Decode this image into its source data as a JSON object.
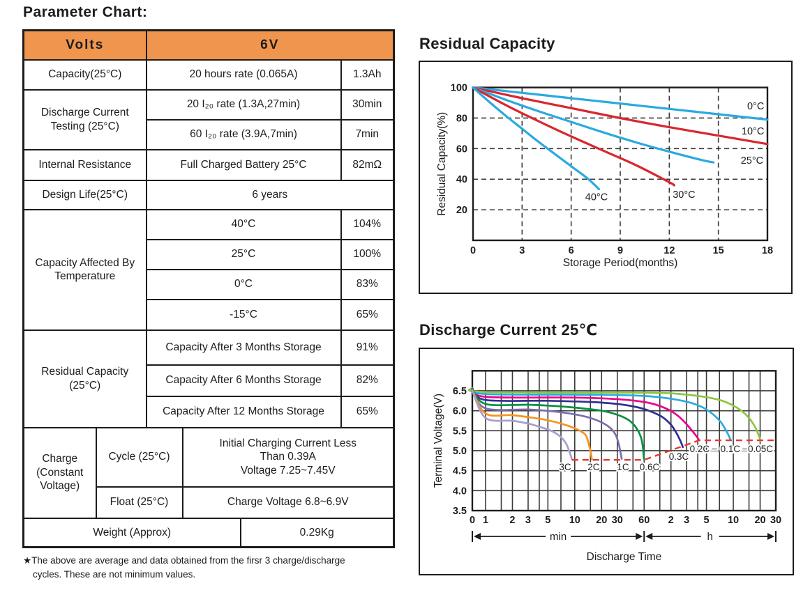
{
  "page": {
    "heading": "Parameter Chart:"
  },
  "colors": {
    "header_orange": "#F0954E",
    "blue": "#2BA9E0",
    "red": "#D9272E",
    "cutoff_red": "#E8382F",
    "grid": "#3a3a3a",
    "ink": "#1c1c1c"
  },
  "table": {
    "header": {
      "volts": "Volts",
      "voltage": "6V"
    },
    "capacity": {
      "label": "Capacity(25°C)",
      "desc": "20 hours rate (0.065A)",
      "value": "1.3Ah"
    },
    "discharge_test": {
      "label": "Discharge Current Testing (25°C)",
      "rows": [
        {
          "desc": "20 I₂₀ rate (1.3A,27min)",
          "value": "30min"
        },
        {
          "desc": "60 I₂₀ rate (3.9A,7min)",
          "value": "7min"
        }
      ]
    },
    "internal_resistance": {
      "label": "Internal Resistance",
      "desc": "Full Charged Battery 25°C",
      "value": "82mΩ"
    },
    "design_life": {
      "label": "Design Life(25°C)",
      "value": "6 years"
    },
    "capacity_temp": {
      "label": "Capacity Affected By Temperature",
      "rows": [
        {
          "desc": "40°C",
          "value": "104%"
        },
        {
          "desc": "25°C",
          "value": "100%"
        },
        {
          "desc": "0°C",
          "value": "83%"
        },
        {
          "desc": "-15°C",
          "value": "65%"
        }
      ]
    },
    "residual": {
      "label": "Residual Capacity (25°C)",
      "rows": [
        {
          "desc": "Capacity After 3 Months Storage",
          "value": "91%"
        },
        {
          "desc": "Capacity After 6 Months Storage",
          "value": "82%"
        },
        {
          "desc": "Capacity After 12 Months Storage",
          "value": "65%"
        }
      ]
    },
    "charge": {
      "label": "Charge (Constant Voltage)",
      "rows": [
        {
          "mode": "Cycle (25°C)",
          "value": "Initial Charging Current Less\nThan 0.39A\nVoltage 7.25~7.45V"
        },
        {
          "mode": "Float (25°C)",
          "value": "Charge Voltage 6.8~6.9V"
        }
      ]
    },
    "weight": {
      "label": "Weight (Approx)",
      "value": "0.29Kg"
    }
  },
  "footnote": "★The above are average and data obtained from the firsr 3 charge/discharge\ncycles. These are not minimum values.",
  "chart_data": [
    {
      "id": "residual-capacity",
      "type": "line",
      "title": "Residual Capacity",
      "xlabel": "Storage Period(months)",
      "ylabel": "Residual Capacity(%)",
      "xlim": [
        0,
        18
      ],
      "ylim": [
        0,
        100
      ],
      "xticks": [
        0,
        3,
        6,
        9,
        12,
        15,
        18
      ],
      "yticks": [
        20,
        40,
        60,
        80,
        100
      ],
      "grid": "dashed",
      "legend_position": "inline-labels",
      "series": [
        {
          "name": "0°C",
          "color": "#2BA9E0",
          "points": [
            [
              0,
              100
            ],
            [
              3,
              96.5
            ],
            [
              6,
              93
            ],
            [
              9,
              89.5
            ],
            [
              12,
              86
            ],
            [
              15,
              82.5
            ],
            [
              18,
              79
            ]
          ]
        },
        {
          "name": "10°C",
          "color": "#D9272E",
          "points": [
            [
              0,
              100
            ],
            [
              3,
              93
            ],
            [
              6,
              86.5
            ],
            [
              9,
              80
            ],
            [
              12,
              74
            ],
            [
              15,
              68.5
            ],
            [
              18,
              63
            ]
          ]
        },
        {
          "name": "25°C",
          "color": "#2BA9E0",
          "points": [
            [
              0,
              100
            ],
            [
              2,
              92
            ],
            [
              4,
              84.5
            ],
            [
              6,
              77.5
            ],
            [
              8,
              70.5
            ],
            [
              10,
              64
            ],
            [
              12,
              58
            ],
            [
              14,
              52.5
            ],
            [
              14.7,
              51
            ]
          ]
        },
        {
          "name": "30°C",
          "color": "#D9272E",
          "points": [
            [
              0,
              100
            ],
            [
              2,
              88.5
            ],
            [
              4,
              78
            ],
            [
              6,
              68
            ],
            [
              8,
              58.5
            ],
            [
              10,
              49
            ],
            [
              12,
              38
            ],
            [
              12.3,
              36
            ]
          ]
        },
        {
          "name": "40°C",
          "color": "#2BA9E0",
          "points": [
            [
              0,
              100
            ],
            [
              1,
              90.5
            ],
            [
              2,
              81.5
            ],
            [
              3,
              73
            ],
            [
              4,
              64.5
            ],
            [
              5,
              56.5
            ],
            [
              6,
              48.5
            ],
            [
              7,
              40.5
            ],
            [
              7.7,
              33.5
            ]
          ]
        }
      ],
      "labels": [
        {
          "text": "0°C",
          "x": 17.8,
          "y": 88,
          "anchor": "end"
        },
        {
          "text": "10°C",
          "x": 17.8,
          "y": 71.5,
          "anchor": "end"
        },
        {
          "text": "25°C",
          "x": 17.75,
          "y": 52.5,
          "anchor": "end"
        },
        {
          "text": "40°C",
          "x": 7.55,
          "y": 28.5,
          "anchor": "middle"
        },
        {
          "text": "30°C",
          "x": 12.9,
          "y": 30,
          "anchor": "middle"
        }
      ]
    },
    {
      "id": "discharge-current",
      "type": "line",
      "title": "Discharge Current 25℃",
      "xlabel": "Discharge Time",
      "ylabel": "Terminal Voltage(V)",
      "xscale": "log-minutes",
      "xlim": [
        0,
        1800
      ],
      "ylim": [
        3.5,
        7.0
      ],
      "xticks": [
        {
          "t": 0,
          "label": "0"
        },
        {
          "t": 1,
          "label": "1"
        },
        {
          "t": 2,
          "label": "2"
        },
        {
          "t": 3,
          "label": "3"
        },
        {
          "t": 5,
          "label": "5"
        },
        {
          "t": 10,
          "label": "10"
        },
        {
          "t": 20,
          "label": "20"
        },
        {
          "t": 30,
          "label": "30"
        },
        {
          "t": 60,
          "label": "60"
        },
        {
          "t": 120,
          "label": "2"
        },
        {
          "t": 180,
          "label": "3"
        },
        {
          "t": 300,
          "label": "5"
        },
        {
          "t": 600,
          "label": "10"
        },
        {
          "t": 1200,
          "label": "20"
        },
        {
          "t": 1800,
          "label": "30"
        }
      ],
      "xgrid": [
        1,
        1.5,
        2,
        3,
        4,
        5,
        7,
        10,
        15,
        20,
        30,
        45,
        60,
        90,
        120,
        180,
        240,
        300,
        420,
        600,
        900,
        1200
      ],
      "yticks": [
        3.5,
        4.0,
        4.5,
        5.0,
        5.5,
        6.0,
        6.5
      ],
      "grid": "solid",
      "unit_bands": [
        {
          "label": "min",
          "from": 0,
          "to": 60
        },
        {
          "label": "h",
          "from": 60,
          "to": 1800
        }
      ],
      "series": [
        {
          "name": "0.05C",
          "color": "#8CC63F",
          "points": [
            [
              0,
              6.57
            ],
            [
              1,
              6.47
            ],
            [
              60,
              6.45
            ],
            [
              150,
              6.42
            ],
            [
              300,
              6.34
            ],
            [
              450,
              6.25
            ],
            [
              600,
              6.13
            ],
            [
              750,
              5.99
            ],
            [
              900,
              5.82
            ],
            [
              1050,
              5.6
            ],
            [
              1150,
              5.4
            ],
            [
              1211,
              5.25
            ]
          ]
        },
        {
          "name": "0.1C",
          "color": "#29ABE2",
          "points": [
            [
              0,
              6.56
            ],
            [
              1,
              6.42
            ],
            [
              20,
              6.4
            ],
            [
              60,
              6.37
            ],
            [
              120,
              6.3
            ],
            [
              200,
              6.2
            ],
            [
              280,
              6.07
            ],
            [
              360,
              5.9
            ],
            [
              440,
              5.7
            ],
            [
              505,
              5.48
            ],
            [
              540,
              5.35
            ],
            [
              558,
              5.27
            ]
          ]
        },
        {
          "name": "0.2C",
          "color": "#EC008C",
          "points": [
            [
              0,
              6.55
            ],
            [
              1,
              6.35
            ],
            [
              10,
              6.33
            ],
            [
              30,
              6.29
            ],
            [
              60,
              6.22
            ],
            [
              90,
              6.12
            ],
            [
              125,
              5.97
            ],
            [
              160,
              5.78
            ],
            [
              195,
              5.57
            ],
            [
              225,
              5.4
            ],
            [
              242,
              5.3
            ],
            [
              248,
              5.26
            ]
          ]
        },
        {
          "name": "0.3C",
          "color": "#2E3192",
          "points": [
            [
              0,
              6.54
            ],
            [
              1,
              6.27
            ],
            [
              5,
              6.25
            ],
            [
              15,
              6.22
            ],
            [
              30,
              6.17
            ],
            [
              50,
              6.09
            ],
            [
              70,
              5.99
            ],
            [
              95,
              5.85
            ],
            [
              120,
              5.65
            ],
            [
              140,
              5.42
            ],
            [
              155,
              5.22
            ],
            [
              163,
              5.09
            ]
          ]
        },
        {
          "name": "0.6C",
          "color": "#00913F",
          "points": [
            [
              0,
              6.53
            ],
            [
              1,
              6.17
            ],
            [
              3,
              6.15
            ],
            [
              6,
              6.12
            ],
            [
              10,
              6.08
            ],
            [
              20,
              6.0
            ],
            [
              30,
              5.9
            ],
            [
              40,
              5.77
            ],
            [
              48,
              5.6
            ],
            [
              55,
              5.35
            ],
            [
              58,
              5.1
            ],
            [
              59.7,
              4.8
            ]
          ]
        },
        {
          "name": "1C",
          "color": "#7B6DB0",
          "points": [
            [
              0,
              6.52
            ],
            [
              1,
              6.06
            ],
            [
              3,
              6.03
            ],
            [
              6,
              5.98
            ],
            [
              10,
              5.91
            ],
            [
              15,
              5.82
            ],
            [
              20,
              5.71
            ],
            [
              25,
              5.57
            ],
            [
              29,
              5.38
            ],
            [
              31.5,
              5.12
            ],
            [
              33.6,
              4.8
            ]
          ]
        },
        {
          "name": "2C",
          "color": "#F7941E",
          "points": [
            [
              0,
              6.51
            ],
            [
              1,
              5.93
            ],
            [
              2,
              5.89
            ],
            [
              4,
              5.8
            ],
            [
              6,
              5.72
            ],
            [
              8,
              5.64
            ],
            [
              10,
              5.56
            ],
            [
              12,
              5.47
            ],
            [
              13.5,
              5.36
            ],
            [
              14.8,
              5.05
            ],
            [
              15.6,
              4.78
            ]
          ]
        },
        {
          "name": "3C",
          "color": "#A79FD1",
          "points": [
            [
              0,
              6.5
            ],
            [
              1,
              5.82
            ],
            [
              2,
              5.75
            ],
            [
              3,
              5.68
            ],
            [
              4,
              5.6
            ],
            [
              5,
              5.53
            ],
            [
              6,
              5.45
            ],
            [
              7,
              5.34
            ],
            [
              8,
              5.18
            ],
            [
              8.8,
              4.95
            ],
            [
              9.3,
              4.78
            ]
          ]
        }
      ],
      "cutoff_line": {
        "color": "#E8382F",
        "points": [
          [
            9.3,
            4.77
          ],
          [
            59.7,
            4.77
          ],
          [
            248,
            5.26
          ],
          [
            1780,
            5.26
          ]
        ]
      },
      "labels": [
        {
          "text": "3C",
          "t": 7.8,
          "v": 4.6
        },
        {
          "text": "2C",
          "t": 16.3,
          "v": 4.6
        },
        {
          "text": "1C",
          "t": 34.8,
          "v": 4.6
        },
        {
          "text": "0.6C",
          "t": 69,
          "v": 4.6
        },
        {
          "text": "0.3C",
          "t": 147,
          "v": 4.86
        },
        {
          "text": "0.2C",
          "t": 252,
          "v": 5.05
        },
        {
          "text": "‒",
          "t": 368,
          "v": 5.07
        },
        {
          "text": "0.1C",
          "t": 557,
          "v": 5.05
        },
        {
          "text": "‒",
          "t": 814,
          "v": 5.07
        },
        {
          "text": "0.05C",
          "t": 1211,
          "v": 5.05
        }
      ]
    }
  ]
}
